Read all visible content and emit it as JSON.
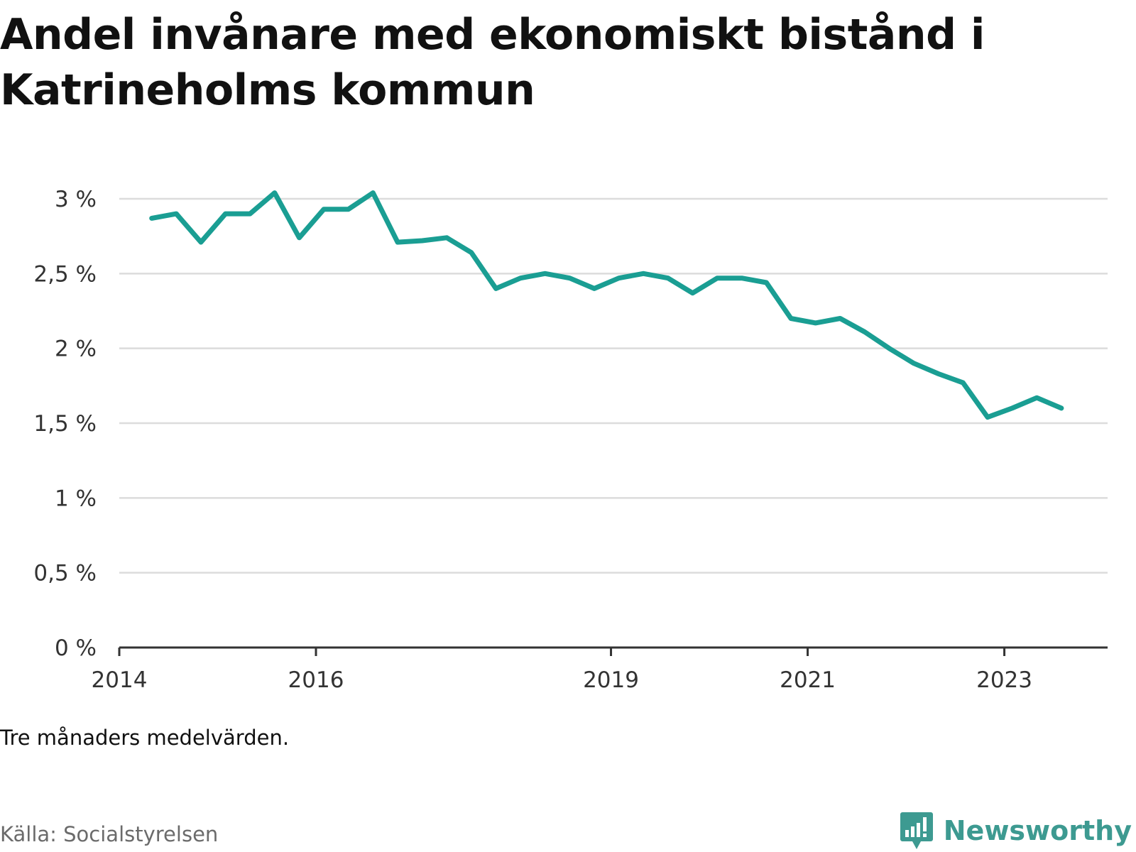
{
  "title": "Andel invånare med ekonomiskt bistånd i Katrineholms kommun",
  "note": "Tre månaders medelvärden.",
  "source": "Källa: Socialstyrelsen",
  "brand": {
    "name": "Newsworthy",
    "icon": "newsworthy-logo-icon",
    "color": "#3d9a91"
  },
  "chart_data": {
    "type": "line",
    "title": "Andel invånare med ekonomiskt bistånd i Katrineholms kommun",
    "xlabel": "",
    "ylabel": "",
    "ylim": [
      0,
      3
    ],
    "xlim": [
      2014.0,
      2024.05
    ],
    "y_ticks": [
      0,
      0.5,
      1,
      1.5,
      2,
      2.5,
      3
    ],
    "y_tick_labels": [
      "0 %",
      "0,5 %",
      "1 %",
      "1,5 %",
      "2 %",
      "2,5 %",
      "3 %"
    ],
    "x_ticks": [
      2014,
      2016,
      2019,
      2021,
      2023
    ],
    "x_tick_labels": [
      "2014",
      "2016",
      "2019",
      "2021",
      "2023"
    ],
    "grid": true,
    "line_color": "#1a9e93",
    "series": [
      {
        "x": [
          2014.33,
          2014.58,
          2014.83,
          2015.08,
          2015.33,
          2015.58,
          2015.83,
          2016.08,
          2016.33,
          2016.58,
          2016.83,
          2017.08,
          2017.33,
          2017.58,
          2017.83,
          2018.08,
          2018.33,
          2018.58,
          2018.83,
          2019.08,
          2019.33,
          2019.58,
          2019.83,
          2020.08,
          2020.33,
          2020.58,
          2020.83,
          2021.08,
          2021.33,
          2021.58,
          2021.83,
          2022.08,
          2022.33,
          2022.58,
          2022.83,
          2023.08,
          2023.33,
          2023.58
        ],
        "values": [
          2.87,
          2.9,
          2.71,
          2.9,
          2.9,
          3.04,
          2.74,
          2.93,
          2.93,
          3.04,
          2.71,
          2.72,
          2.74,
          2.64,
          2.4,
          2.47,
          2.5,
          2.47,
          2.4,
          2.47,
          2.5,
          2.47,
          2.37,
          2.47,
          2.47,
          2.44,
          2.2,
          2.17,
          2.2,
          2.11,
          2.0,
          1.9,
          1.83,
          1.77,
          1.54,
          1.6,
          1.67,
          1.6
        ]
      }
    ]
  }
}
